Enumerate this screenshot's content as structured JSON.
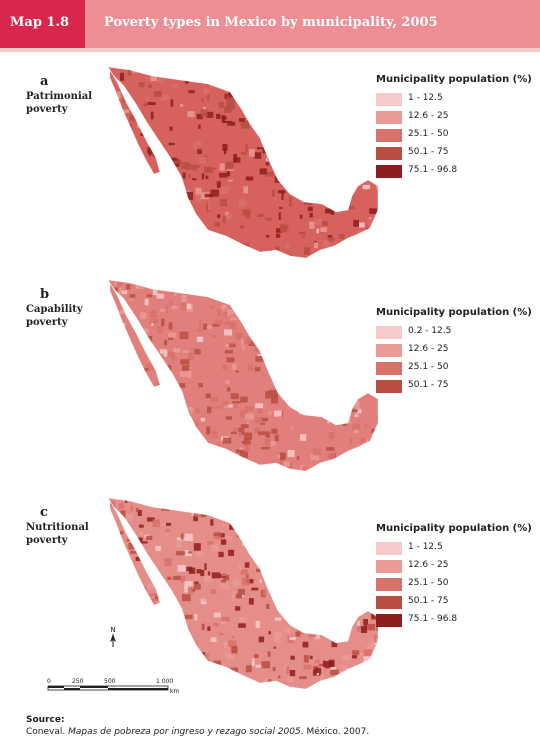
{
  "header": {
    "label": "Map 1.8",
    "title": "Poverty types in Mexico by municipality, 2005",
    "colors": {
      "label_bg": "#d8264c",
      "title_bg": "#ec8e94",
      "strip": "#f6c9c9"
    }
  },
  "maps": [
    {
      "letter": "a",
      "name": "Patrimonial poverty",
      "base_color": "#d7615d",
      "legend_title": "Municipality population (%)",
      "legend": [
        {
          "label": "1 - 12.5",
          "color": "#f6caca"
        },
        {
          "label": "12.6 - 25",
          "color": "#eb9a96"
        },
        {
          "label": "25.1 - 50",
          "color": "#d9716b"
        },
        {
          "label": "50.1 - 75",
          "color": "#b94d42"
        },
        {
          "label": "75.1 - 96.8",
          "color": "#8e1d1d"
        }
      ]
    },
    {
      "letter": "b",
      "name": "Capability poverty",
      "base_color": "#e07f7b",
      "legend_title": "Municipality population (%)",
      "legend": [
        {
          "label": "0.2 - 12.5",
          "color": "#f6caca"
        },
        {
          "label": "12.6 - 25",
          "color": "#eb9a96"
        },
        {
          "label": "25.1 - 50",
          "color": "#d9716b"
        },
        {
          "label": "50.1 - 75",
          "color": "#b94d42"
        }
      ]
    },
    {
      "letter": "c",
      "name": "Nutritional poverty",
      "base_color": "#e58d89",
      "legend_title": "Municipality population (%)",
      "legend": [
        {
          "label": "1 - 12.5",
          "color": "#f6caca"
        },
        {
          "label": "12.6 - 25",
          "color": "#eb9a96"
        },
        {
          "label": "25.1 - 50",
          "color": "#d9716b"
        },
        {
          "label": "50.1 - 75",
          "color": "#b94d42"
        },
        {
          "label": "75.1 - 96.8",
          "color": "#8e1d1d"
        }
      ]
    }
  ],
  "north_label": "N",
  "scale": {
    "ticks": [
      "0",
      "250",
      "500",
      "1 000"
    ],
    "unit": "km"
  },
  "source": {
    "title": "Source:",
    "text_prefix": "Coneval. ",
    "text_italic": "Mapas de pobreza por ingreso y rezago social 2005",
    "text_suffix": ". México. 2007."
  }
}
